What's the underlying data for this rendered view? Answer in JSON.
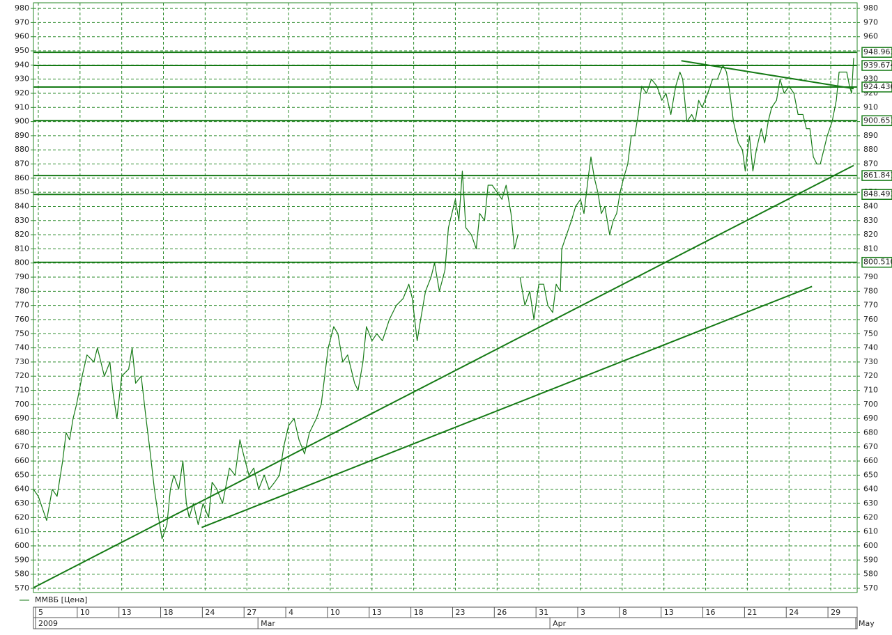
{
  "chart_data": {
    "type": "line",
    "x": [
      -0.35,
      0,
      0.35,
      0.6,
      1,
      1.35,
      1.75,
      2,
      2.25,
      2.5,
      2.75,
      3.15,
      3.5,
      4,
      4.25,
      4.75,
      5.15,
      5.35,
      5.65,
      6,
      6.5,
      6.75,
      7,
      7.4,
      7.75,
      8,
      8.35,
      8.65,
      8.9,
      9.25,
      9.5,
      9.75,
      10.1,
      10.4,
      10.65,
      10.85,
      11.15,
      11.5,
      11.85,
      12.25,
      12.5,
      12.85,
      13.25,
      13.75,
      14.15,
      14.5,
      14.75,
      15.15,
      15.5,
      15.85,
      16.25,
      16.6,
      17,
      17.35,
      17.65,
      18,
      18.4,
      18.75,
      19.15,
      19.5,
      20,
      20.35,
      20.6,
      20.85,
      21.25,
      21.55,
      21.9,
      22.25,
      22.5,
      22.75,
      23,
      23.35,
      23.6,
      24,
      24.35,
      24.75,
      25.25,
      25.75,
      26.25,
      26.65,
      26.9,
      27.25,
      27.5,
      27.85,
      28.25,
      28.5,
      28.85,
      29.25,
      29.5,
      29.75,
      30,
      30.25,
      30.5,
      30.75,
      31.15,
      31.5,
      31.75,
      32.1,
      32.35,
      32.65,
      33,
      33.35,
      33.65,
      34,
      34.25,
      34.5,
      34.6,
      34.65,
      35,
      35.35,
      35.65,
      36,
      36.35,
      36.65,
      37,
      37.25,
      37.55,
      37.65,
      38,
      38.35,
      38.65,
      39,
      39.25,
      39.55,
      39.75,
      40,
      40.25,
      40.5,
      40.75,
      41.1,
      41.35,
      41.6,
      41.85,
      42.1,
      42.4,
      42.65,
      42.9,
      43.15,
      43.4,
      43.75,
      44.1,
      44.5,
      44.85,
      45.15,
      45.5,
      45.85,
      46.15,
      46.35,
      46.65,
      47,
      47.25,
      47.5,
      47.75,
      48.15,
      48.5,
      48.85,
      49.25,
      49.5,
      49.75,
      50,
      50.35,
      50.65,
      50.85,
      51.15,
      51.4,
      51.65,
      52,
      52.25,
      52.5,
      52.75,
      53.1,
      53.35,
      53.65,
      54,
      54.35,
      54.65,
      55,
      55.25,
      55.5,
      55.75,
      56,
      56.25,
      56.5,
      56.75,
      57.1,
      57.4,
      57.6,
      57.85,
      58.15,
      58.35,
      58.5,
      58.65
    ],
    "series": [
      {
        "name": "ММВБ [Цена]",
        "color": "#157a15",
        "values": [
          640,
          635,
          625,
          618,
          640,
          635,
          660,
          680,
          675,
          690,
          700,
          720,
          735,
          730,
          740,
          720,
          730,
          710,
          690,
          720,
          725,
          740,
          715,
          720,
          690,
          670,
          640,
          620,
          605,
          615,
          640,
          650,
          640,
          660,
          630,
          620,
          630,
          615,
          630,
          620,
          645,
          640,
          630,
          655,
          650,
          675,
          665,
          650,
          655,
          640,
          650,
          640,
          645,
          650,
          670,
          685,
          690,
          675,
          665,
          680,
          690,
          700,
          720,
          740,
          755,
          750,
          730,
          735,
          725,
          715,
          710,
          730,
          755,
          745,
          750,
          745,
          760,
          770,
          775,
          785,
          775,
          745,
          760,
          780,
          790,
          800,
          780,
          795,
          825,
          835,
          845,
          830,
          865,
          825,
          820,
          810,
          835,
          830,
          855,
          855,
          850,
          845,
          855,
          835,
          810,
          820,
          null,
          790,
          770,
          780,
          760,
          785,
          785,
          770,
          765,
          785,
          780,
          810,
          820,
          830,
          840,
          845,
          835,
          860,
          875,
          860,
          850,
          835,
          840,
          820,
          830,
          835,
          850,
          860,
          870,
          890,
          890,
          905,
          925,
          920,
          930,
          925,
          915,
          920,
          905,
          925,
          935,
          930,
          900,
          905,
          900,
          915,
          910,
          920,
          930,
          930,
          940,
          935,
          920,
          900,
          885,
          880,
          865,
          890,
          865,
          880,
          895,
          885,
          900,
          910,
          915,
          930,
          920,
          925,
          920,
          905,
          905,
          895,
          895,
          875,
          870,
          870,
          880,
          890,
          900,
          915,
          935,
          935,
          935,
          925,
          920,
          945
        ]
      }
    ],
    "xlim": [
      -0.35,
      58.9
    ],
    "xticks": [
      {
        "value": 0,
        "label": "5"
      },
      {
        "value": 3,
        "label": "10"
      },
      {
        "value": 6,
        "label": "13"
      },
      {
        "value": 9,
        "label": "18"
      },
      {
        "value": 12,
        "label": "24"
      },
      {
        "value": 15,
        "label": "27"
      },
      {
        "value": 18,
        "label": "4"
      },
      {
        "value": 21,
        "label": "10"
      },
      {
        "value": 24,
        "label": "13"
      },
      {
        "value": 27,
        "label": "18"
      },
      {
        "value": 30,
        "label": "23"
      },
      {
        "value": 33,
        "label": "26"
      },
      {
        "value": 36,
        "label": "31"
      },
      {
        "value": 39,
        "label": "3"
      },
      {
        "value": 42,
        "label": "8"
      },
      {
        "value": 45,
        "label": "13"
      },
      {
        "value": 48,
        "label": "16"
      },
      {
        "value": 51,
        "label": "21"
      },
      {
        "value": 54,
        "label": "24"
      },
      {
        "value": 57,
        "label": "29"
      }
    ],
    "month_ticks": [
      {
        "value": 0,
        "label": "2009"
      },
      {
        "value": 16,
        "label": "Mar"
      },
      {
        "value": 37,
        "label": "Apr"
      },
      {
        "value": 59,
        "label": "May"
      }
    ],
    "ylim": [
      567,
      984
    ],
    "yticks": [
      570,
      580,
      590,
      600,
      610,
      620,
      630,
      640,
      650,
      660,
      670,
      680,
      690,
      700,
      710,
      720,
      730,
      740,
      750,
      760,
      770,
      780,
      790,
      800,
      810,
      820,
      830,
      840,
      850,
      860,
      870,
      880,
      890,
      900,
      910,
      920,
      930,
      940,
      950,
      960,
      970,
      980
    ],
    "grid": true,
    "levels": [
      948.963,
      939.674,
      924.436,
      900.651,
      861.841,
      848.493,
      {
        "value": 800.51,
        "label": "800.510"
      }
    ],
    "trend_lines": [
      {
        "x": [
          -0.35,
          58.65
        ],
        "values": [
          570.4,
          869
        ]
      },
      {
        "x": [
          11.75,
          55.65
        ],
        "values": [
          613,
          783.4
        ]
      },
      {
        "x": [
          46.25,
          58.65
        ],
        "values": [
          943,
          923.3
        ]
      }
    ]
  }
}
